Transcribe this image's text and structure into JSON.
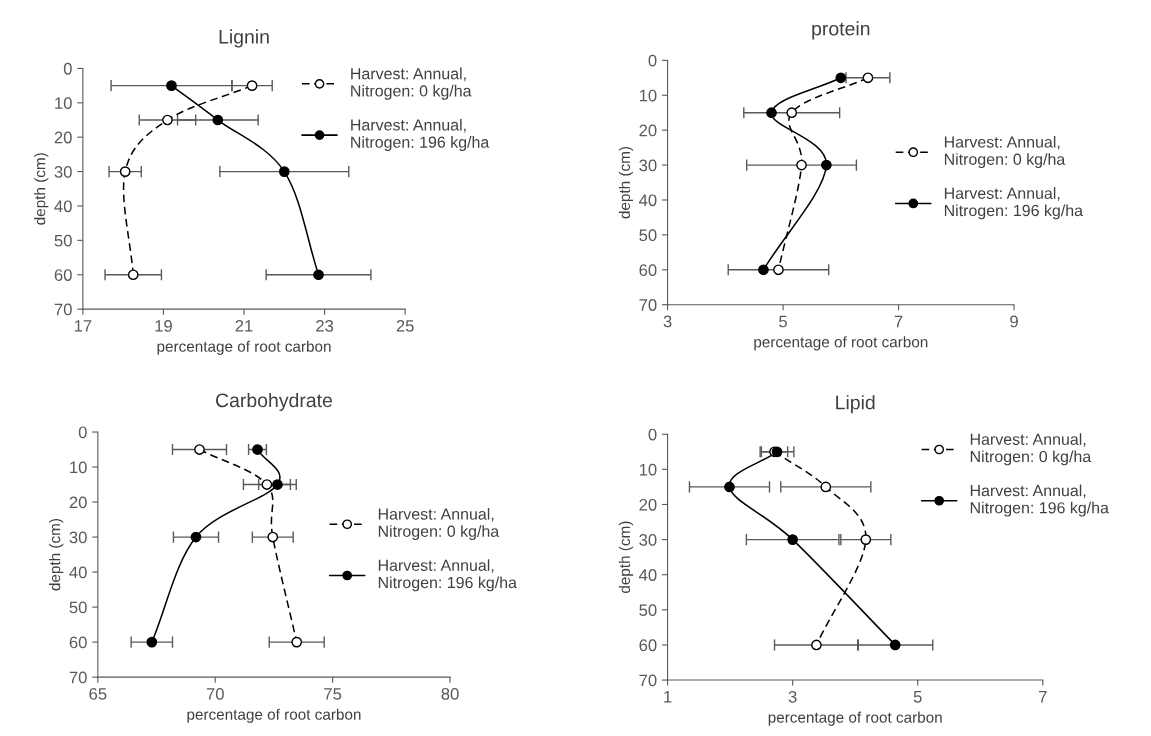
{
  "chart_data": [
    {
      "type": "line",
      "title": "Lignin",
      "xlabel": "percentage of root carbon",
      "ylabel": "depth (cm)",
      "xlim": [
        17,
        25
      ],
      "xticks": [
        17,
        19,
        21,
        23,
        25
      ],
      "ylim": [
        70,
        0
      ],
      "yticks": [
        0,
        10,
        20,
        30,
        40,
        50,
        60,
        70
      ],
      "legend": "top right",
      "marker": "circle",
      "grid": false,
      "series": [
        {
          "name": "Harvest: Annual,\nNitrogen: 0 kg/ha",
          "color": "#000000",
          "line_style": "dashed",
          "x": [
            21.2,
            19.1,
            18.05,
            18.25
          ],
          "values": [
            5,
            15,
            30,
            60
          ],
          "xerrors": [
            0.5,
            0.7,
            0.4,
            0.7
          ]
        },
        {
          "name": "Harvest: Annual,\nNitrogen: 196 kg/ha",
          "color": "#000000",
          "line_style": "solid",
          "x": [
            19.2,
            20.35,
            22.0,
            22.85
          ],
          "values": [
            5,
            15,
            30,
            60
          ],
          "xerrors": [
            1.5,
            1.0,
            1.6,
            1.3
          ]
        }
      ]
    },
    {
      "type": "line",
      "title": "protein",
      "xlabel": "percentage of root carbon",
      "ylabel": "depth (cm)",
      "xlim": [
        3,
        9
      ],
      "xticks": [
        3,
        5,
        7,
        9
      ],
      "ylim": [
        70,
        0
      ],
      "yticks": [
        0,
        10,
        20,
        30,
        40,
        50,
        60,
        70
      ],
      "legend": "right",
      "marker": "circle",
      "grid": false,
      "series": [
        {
          "name": "Harvest: Annual,\nNitrogen: 0 kg/ha",
          "color": "#000000",
          "line_style": "dashed",
          "x": [
            6.47,
            5.15,
            5.32,
            4.92
          ],
          "values": [
            5,
            15,
            30,
            60
          ],
          "xerrors": [
            0.38,
            0.83,
            0.95,
            0.87
          ]
        },
        {
          "name": "Harvest: Annual,\nNitrogen: 196 kg/ha",
          "color": "#000000",
          "line_style": "solid",
          "x": [
            6.0,
            4.8,
            5.75,
            4.66
          ],
          "values": [
            5,
            15,
            30,
            60
          ],
          "xerrors": [
            null,
            null,
            null,
            null
          ]
        }
      ]
    },
    {
      "type": "line",
      "title": "Carbohydrate",
      "xlabel": "percentage of root carbon",
      "ylabel": "depth (cm)",
      "xlim": [
        65,
        80
      ],
      "xticks": [
        65,
        70,
        75,
        80
      ],
      "ylim": [
        70,
        0
      ],
      "yticks": [
        0,
        10,
        20,
        30,
        40,
        50,
        60,
        70
      ],
      "legend": "right",
      "marker": "circle",
      "grid": false,
      "series": [
        {
          "name": "Harvest: Annual,\nNitrogen: 0 kg/ha",
          "color": "#000000",
          "line_style": "dashed",
          "x": [
            69.33,
            72.2,
            72.45,
            73.47
          ],
          "values": [
            5,
            15,
            30,
            60
          ],
          "xerrors": [
            1.15,
            1.0,
            0.87,
            1.17
          ]
        },
        {
          "name": "Harvest: Annual,\nNitrogen: 196 kg/ha",
          "color": "#000000",
          "line_style": "solid",
          "x": [
            71.8,
            72.65,
            69.18,
            67.3
          ],
          "values": [
            5,
            15,
            30,
            60
          ],
          "xerrors": [
            0.38,
            0.8,
            0.96,
            0.88
          ]
        }
      ]
    },
    {
      "type": "line",
      "title": "Lipid",
      "xlabel": "percentage of root carbon",
      "ylabel": "depth (cm)",
      "xlim": [
        1,
        7
      ],
      "xticks": [
        1,
        3,
        5,
        7
      ],
      "ylim": [
        70,
        0
      ],
      "yticks": [
        0,
        10,
        20,
        30,
        40,
        50,
        60,
        70
      ],
      "legend": "top right",
      "marker": "circle",
      "grid": false,
      "series": [
        {
          "name": "Harvest: Annual,\nNitrogen: 0 kg/ha",
          "color": "#000000",
          "line_style": "dashed",
          "x": [
            2.71,
            3.53,
            4.17,
            3.38
          ],
          "values": [
            5,
            15,
            30,
            60
          ],
          "xerrors": [
            0.21,
            0.72,
            0.4,
            0.67
          ]
        },
        {
          "name": "Harvest: Annual,\nNitrogen: 196 kg/ha",
          "color": "#000000",
          "line_style": "solid",
          "x": [
            2.75,
            1.99,
            3.0,
            4.64
          ],
          "values": [
            5,
            15,
            30,
            60
          ],
          "xerrors": [
            0.27,
            0.64,
            0.74,
            0.6
          ]
        }
      ]
    }
  ]
}
